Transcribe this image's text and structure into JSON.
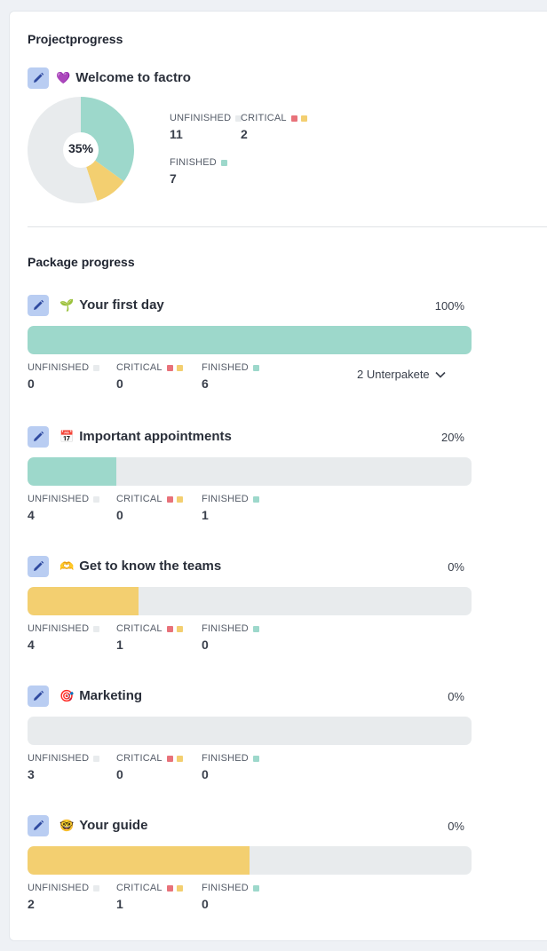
{
  "colors": {
    "finished": "#9dd8cb",
    "critical_red": "#e8727a",
    "critical_yellow": "#f3cf70",
    "unfinished": "#e8ebed",
    "edit_bg": "#b9cdf2",
    "edit_icon": "#2f4aa0"
  },
  "project": {
    "section_title": "Projectprogress",
    "name_emoji": "💜",
    "name": "Welcome to factro",
    "percent_label": "35%",
    "pie": {
      "unfinished": 11,
      "critical": 2,
      "finished": 7
    },
    "stats": {
      "unfinished_label": "UNFINISHED",
      "unfinished_value": "11",
      "critical_label": "CRITICAL",
      "critical_value": "2",
      "finished_label": "FINISHED",
      "finished_value": "7"
    }
  },
  "packages": {
    "section_title": "Package progress",
    "labels": {
      "unfinished": "UNFINISHED",
      "critical": "CRITICAL",
      "finished": "FINISHED"
    },
    "subpackages_label": "2 Unterpakete",
    "items": [
      {
        "emoji": "🌱",
        "name": "Your first day",
        "percent": "100%",
        "bar_fraction": 1.0,
        "bar_color": "finished",
        "unfinished": "0",
        "critical": "0",
        "finished": "6"
      },
      {
        "emoji": "📅",
        "name": "Important appointments",
        "percent": "20%",
        "bar_fraction": 0.2,
        "bar_color": "finished",
        "unfinished": "4",
        "critical": "0",
        "finished": "1"
      },
      {
        "emoji": "🫶",
        "name": "Get to know the teams",
        "percent": "0%",
        "bar_fraction": 0.25,
        "bar_color": "critical_yellow",
        "unfinished": "4",
        "critical": "1",
        "finished": "0"
      },
      {
        "emoji": "🎯",
        "name": "Marketing",
        "percent": "0%",
        "bar_fraction": 0,
        "bar_color": "finished",
        "unfinished": "3",
        "critical": "0",
        "finished": "0"
      },
      {
        "emoji": "🤓",
        "name": "Your guide",
        "percent": "0%",
        "bar_fraction": 0.5,
        "bar_color": "critical_yellow",
        "unfinished": "2",
        "critical": "1",
        "finished": "0"
      }
    ]
  }
}
